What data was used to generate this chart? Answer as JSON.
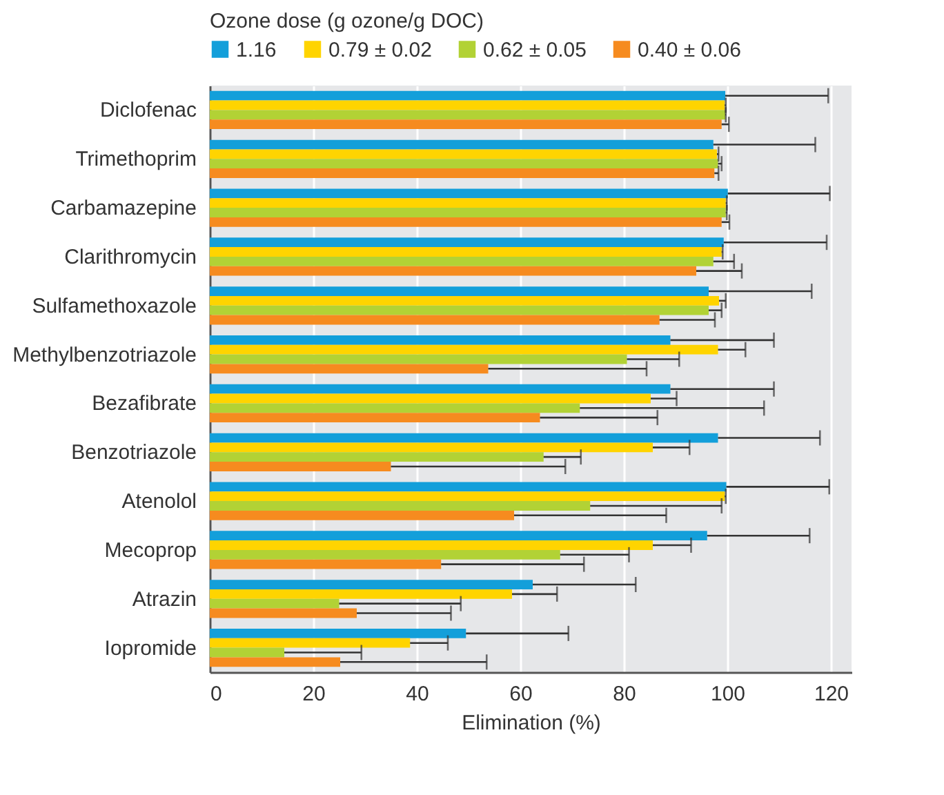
{
  "chart_data": {
    "type": "bar",
    "orientation": "horizontal",
    "xlabel": "Elimination (%)",
    "legend_title": "Ozone dose (g ozone/g DOC)",
    "legend": "top",
    "grid": true,
    "categories": [
      "Diclofenac",
      "Trimethoprim",
      "Carbamazepine",
      "Clarithromycin",
      "Sulfamethoxazole",
      "Methylbenzotriazole",
      "Bezafibrate",
      "Benzotriazole",
      "Atenolol",
      "Mecoprop",
      "Atrazin",
      "Iopromide"
    ],
    "xlim": [
      0,
      124
    ],
    "xticks": [
      0,
      20,
      40,
      60,
      80,
      100,
      120
    ],
    "series": [
      {
        "name": "1.16",
        "color": "#139fda",
        "values": [
          99.6,
          97.3,
          100.1,
          99.3,
          96.4,
          89.0,
          89.0,
          98.2,
          99.8,
          96.1,
          62.4,
          49.5
        ],
        "errors": [
          [
            99.6,
            119.5
          ],
          [
            97.3,
            117.0
          ],
          [
            100.1,
            119.8
          ],
          [
            99.3,
            119.2
          ],
          [
            96.4,
            116.3
          ],
          [
            89.0,
            109.0
          ],
          [
            89.0,
            109.0
          ],
          [
            98.2,
            117.9
          ],
          [
            99.8,
            119.7
          ],
          [
            96.1,
            115.9
          ],
          [
            62.4,
            82.3
          ],
          [
            49.5,
            69.3
          ]
        ]
      },
      {
        "name": "0.79 ± 0.02",
        "color": "#ffd400",
        "values": [
          99.5,
          98.0,
          99.7,
          98.9,
          98.4,
          98.2,
          85.2,
          85.6,
          99.5,
          85.6,
          58.4,
          38.7
        ],
        "errors": [
          [
            99.5,
            99.7
          ],
          [
            98.0,
            98.3
          ],
          [
            99.7,
            99.9
          ],
          [
            98.9,
            99.1
          ],
          [
            98.4,
            99.7
          ],
          [
            98.2,
            103.5
          ],
          [
            85.2,
            90.2
          ],
          [
            85.6,
            92.7
          ],
          [
            99.5,
            99.7
          ],
          [
            85.6,
            93.0
          ],
          [
            58.4,
            67.1
          ],
          [
            38.7,
            46.0
          ]
        ]
      },
      {
        "name": "0.62 ± 0.05",
        "color": "#b2d235",
        "values": [
          99.6,
          98.2,
          99.7,
          97.3,
          96.4,
          80.6,
          71.5,
          64.5,
          73.5,
          67.7,
          25.0,
          14.4
        ],
        "errors": [
          [
            99.6,
            99.7
          ],
          [
            98.2,
            98.9
          ],
          [
            99.7,
            99.9
          ],
          [
            97.3,
            101.3
          ],
          [
            96.4,
            98.9
          ],
          [
            80.6,
            90.7
          ],
          [
            71.5,
            107.1
          ],
          [
            64.5,
            71.7
          ],
          [
            73.5,
            98.9
          ],
          [
            67.7,
            81.0
          ],
          [
            25.0,
            48.5
          ],
          [
            14.4,
            29.3
          ]
        ]
      },
      {
        "name": "0.40 ± 0.06",
        "color": "#f68b1f",
        "values": [
          98.9,
          97.5,
          98.9,
          94.0,
          86.9,
          53.8,
          63.8,
          35.0,
          58.8,
          44.7,
          28.4,
          25.2
        ],
        "errors": [
          [
            98.9,
            100.3
          ],
          [
            97.5,
            98.3
          ],
          [
            98.9,
            100.4
          ],
          [
            94.0,
            102.8
          ],
          [
            86.9,
            97.6
          ],
          [
            53.8,
            84.4
          ],
          [
            63.8,
            86.5
          ],
          [
            35.0,
            68.7
          ],
          [
            58.8,
            88.2
          ],
          [
            44.7,
            72.3
          ],
          [
            28.4,
            46.6
          ],
          [
            25.2,
            53.5
          ]
        ]
      }
    ]
  }
}
